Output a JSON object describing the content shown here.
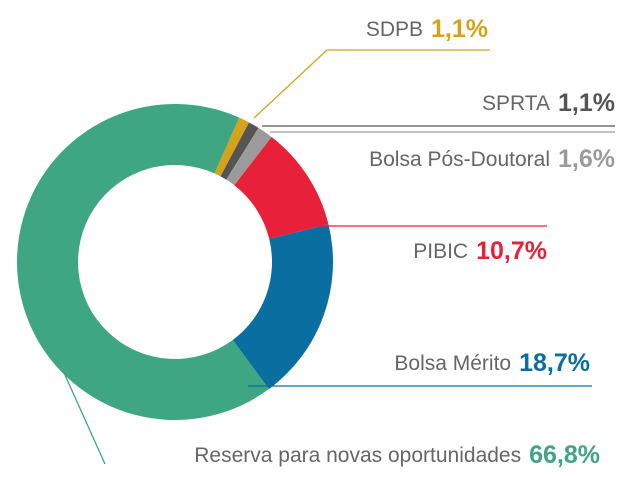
{
  "chart_data": {
    "type": "donut",
    "categories": [
      "SDPB",
      "SPRTA",
      "Bolsa Pós-Doutoral",
      "PIBIC",
      "Bolsa Mérito",
      "Reserva para novas oportunidades"
    ],
    "values": [
      1.1,
      1.1,
      1.6,
      10.7,
      18.7,
      66.8
    ],
    "value_labels": [
      "1,1%",
      "1,1%",
      "1,6%",
      "10,7%",
      "18,7%",
      "66,8%"
    ],
    "colors": [
      "#d4a31a",
      "#555555",
      "#9b9b9b",
      "#e8203a",
      "#0a6fa0",
      "#3ea682"
    ]
  }
}
